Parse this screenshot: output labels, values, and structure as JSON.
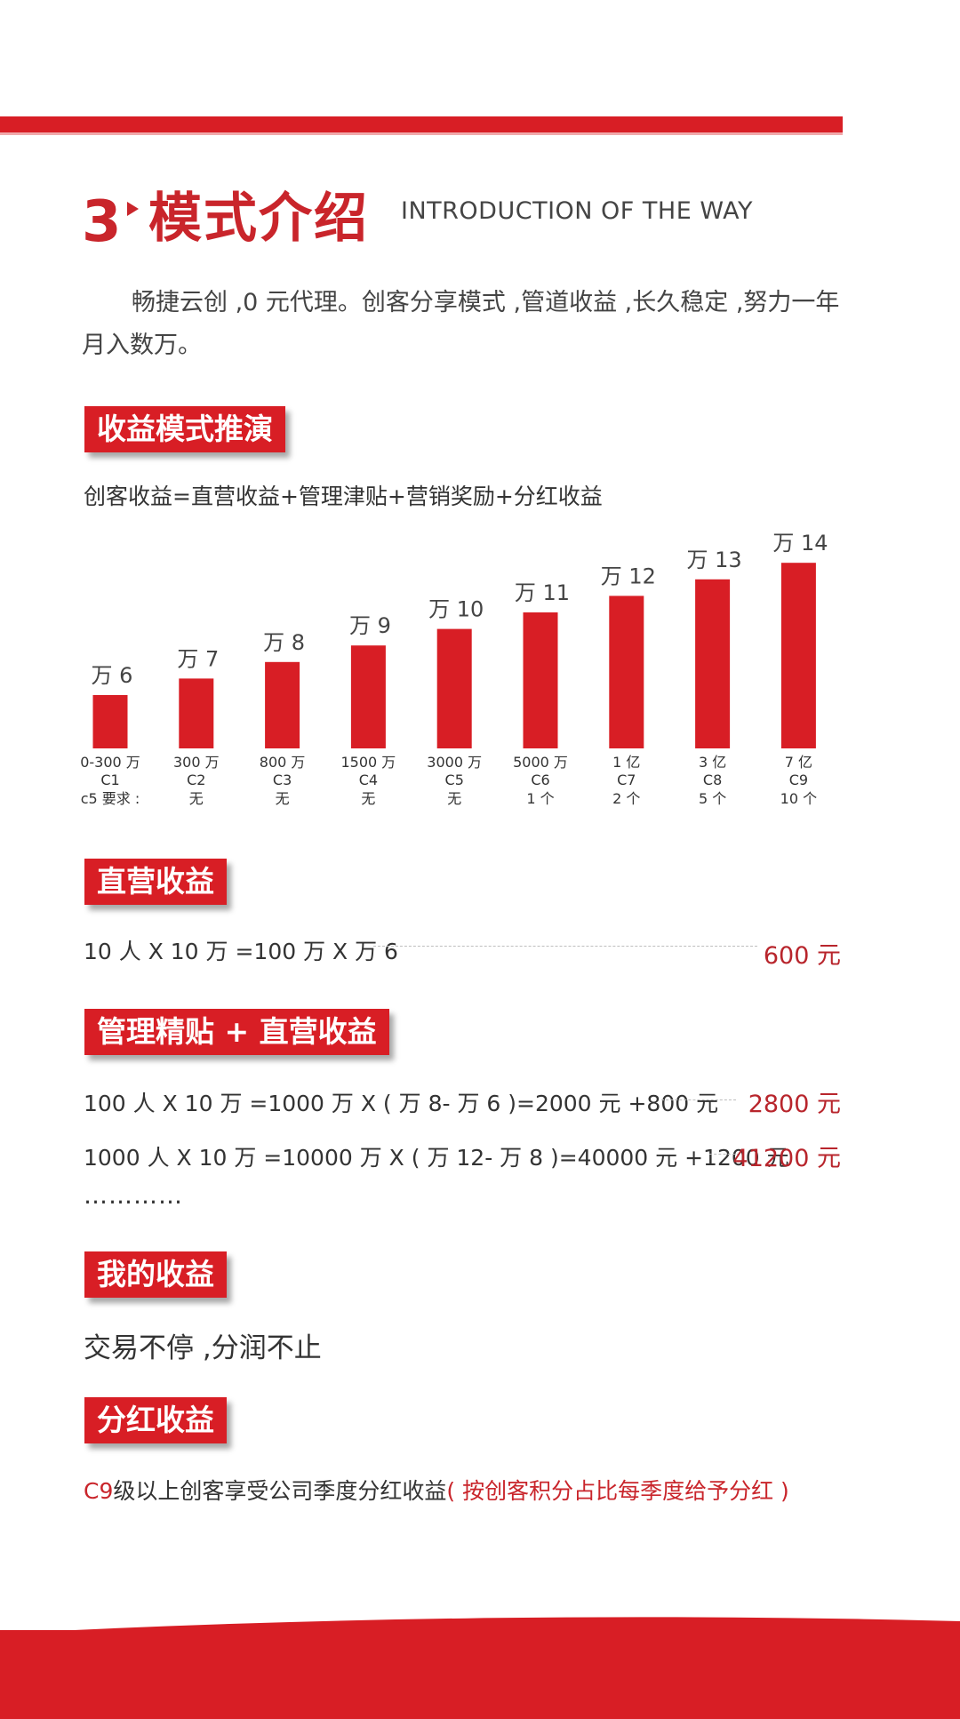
{
  "header": {
    "number": "3",
    "title": "模式介绍",
    "subtitle": "INTRODUCTION OF THE WAY"
  },
  "intro": "畅捷云创 ,0 元代理。创客分享模式 ,管道收益 ,长久稳定 ,努力一年月入数万。",
  "sections": {
    "income_model": {
      "tag": "收益模式推演",
      "formula": "创客收益=直营收益+管理津贴+营销奖励+分红收益"
    },
    "direct": {
      "tag": "直营收益",
      "line": "10 人 X 10 万 =100 万 X 万 6",
      "value": "600 元"
    },
    "management": {
      "tag": "管理精贴 + 直营收益",
      "line1": "100 人 X 10 万 =1000 万 X ( 万 8- 万 6 )=2000 元 +800 元",
      "value1": "2800 元",
      "line2": "1000 人 X 10 万 =10000 万 X ( 万 12- 万 8 )=40000 元 +1200 元",
      "value2": "41200 元",
      "ellipsis": "…………"
    },
    "mine": {
      "tag": "我的收益",
      "text": "交易不停 ,分润不止"
    },
    "dividend": {
      "tag": "分红收益",
      "prefix": "C9",
      "text": "级以上创客享受公司季度分红收益",
      "note": "( 按创客积分占比每季度给予分红 )"
    }
  },
  "chart_data": {
    "type": "bar",
    "title": "",
    "xlabel": "",
    "ylabel": "",
    "categories": [
      "C1",
      "C2",
      "C3",
      "C4",
      "C5",
      "C6",
      "C7",
      "C8",
      "C9"
    ],
    "values": [
      6,
      7,
      8,
      9,
      10,
      11,
      12,
      13,
      14
    ],
    "ylim": [
      0,
      14
    ],
    "grid": false,
    "legend": "none",
    "bar_color": "#d81e25",
    "value_labels": [
      "万 6",
      "万 7",
      "万 8",
      "万 9",
      "万 10",
      "万 11",
      "万 12",
      "万 13",
      "万 14"
    ],
    "volume_labels": [
      "0-300 万",
      "300 万",
      "800 万",
      "1500 万",
      "3000 万",
      "5000 万",
      "1 亿",
      "3 亿",
      "7 亿"
    ],
    "requirement_labels": [
      "c5 要求 :",
      "无",
      "无",
      "无",
      "无",
      "1 个",
      "2 个",
      "5 个",
      "10 个"
    ]
  }
}
